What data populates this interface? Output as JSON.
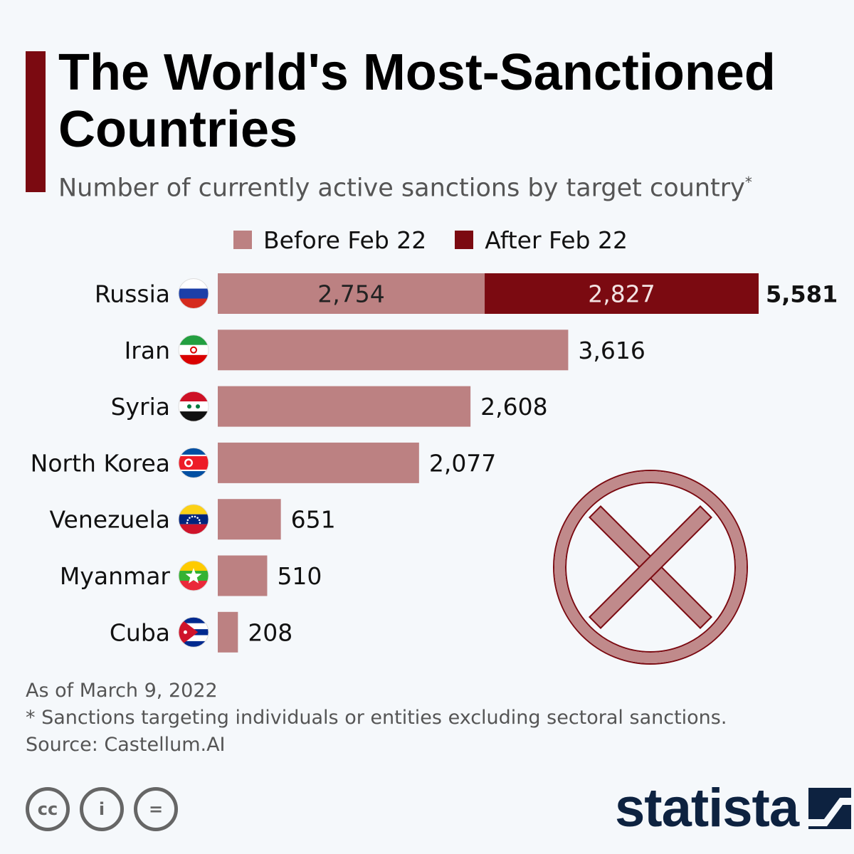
{
  "title": "The World's Most-Sanctioned Countries",
  "subtitle": "Number of currently active sanctions by target country",
  "subtitle_marker": "*",
  "colors": {
    "before": "#bc8182",
    "after": "#7b0a11",
    "background": "#f5f8fb",
    "accent": "#7b0a11"
  },
  "legend": [
    {
      "label": "Before Feb 22",
      "color": "#bc8182"
    },
    {
      "label": "After Feb 22",
      "color": "#7b0a11"
    }
  ],
  "chart_data": {
    "type": "bar",
    "orientation": "horizontal",
    "stacked": true,
    "categories": [
      "Russia",
      "Iran",
      "Syria",
      "North Korea",
      "Venezuela",
      "Myanmar",
      "Cuba"
    ],
    "series": [
      {
        "name": "Before Feb 22",
        "values": [
          2754,
          3616,
          2608,
          2077,
          651,
          510,
          208
        ]
      },
      {
        "name": "After Feb 22",
        "values": [
          2827,
          0,
          0,
          0,
          0,
          0,
          0
        ]
      }
    ],
    "segment_labels": {
      "Before Feb 22": [
        "2,754"
      ],
      "After Feb 22": [
        "2,827"
      ]
    },
    "total_labels": [
      "5,581",
      "3,616",
      "2,608",
      "2,077",
      "651",
      "510",
      "208"
    ],
    "xlim": [
      0,
      5581
    ],
    "grid": false,
    "legend_position": "top"
  },
  "flags": [
    "russia-flag-icon",
    "iran-flag-icon",
    "syria-flag-icon",
    "north-korea-flag-icon",
    "venezuela-flag-icon",
    "myanmar-flag-icon",
    "cuba-flag-icon"
  ],
  "decoration": "crossed-circle-icon",
  "notes": {
    "date": "As of March 9, 2022",
    "footnote": "* Sanctions targeting individuals or entities excluding sectoral sanctions.",
    "source": "Source: Castellum.AI"
  },
  "license_icons": [
    {
      "icon": "cc-icon",
      "glyph": "cc"
    },
    {
      "icon": "attribution-icon",
      "glyph": "i"
    },
    {
      "icon": "no-derivatives-icon",
      "glyph": "="
    }
  ],
  "brand": "statista"
}
